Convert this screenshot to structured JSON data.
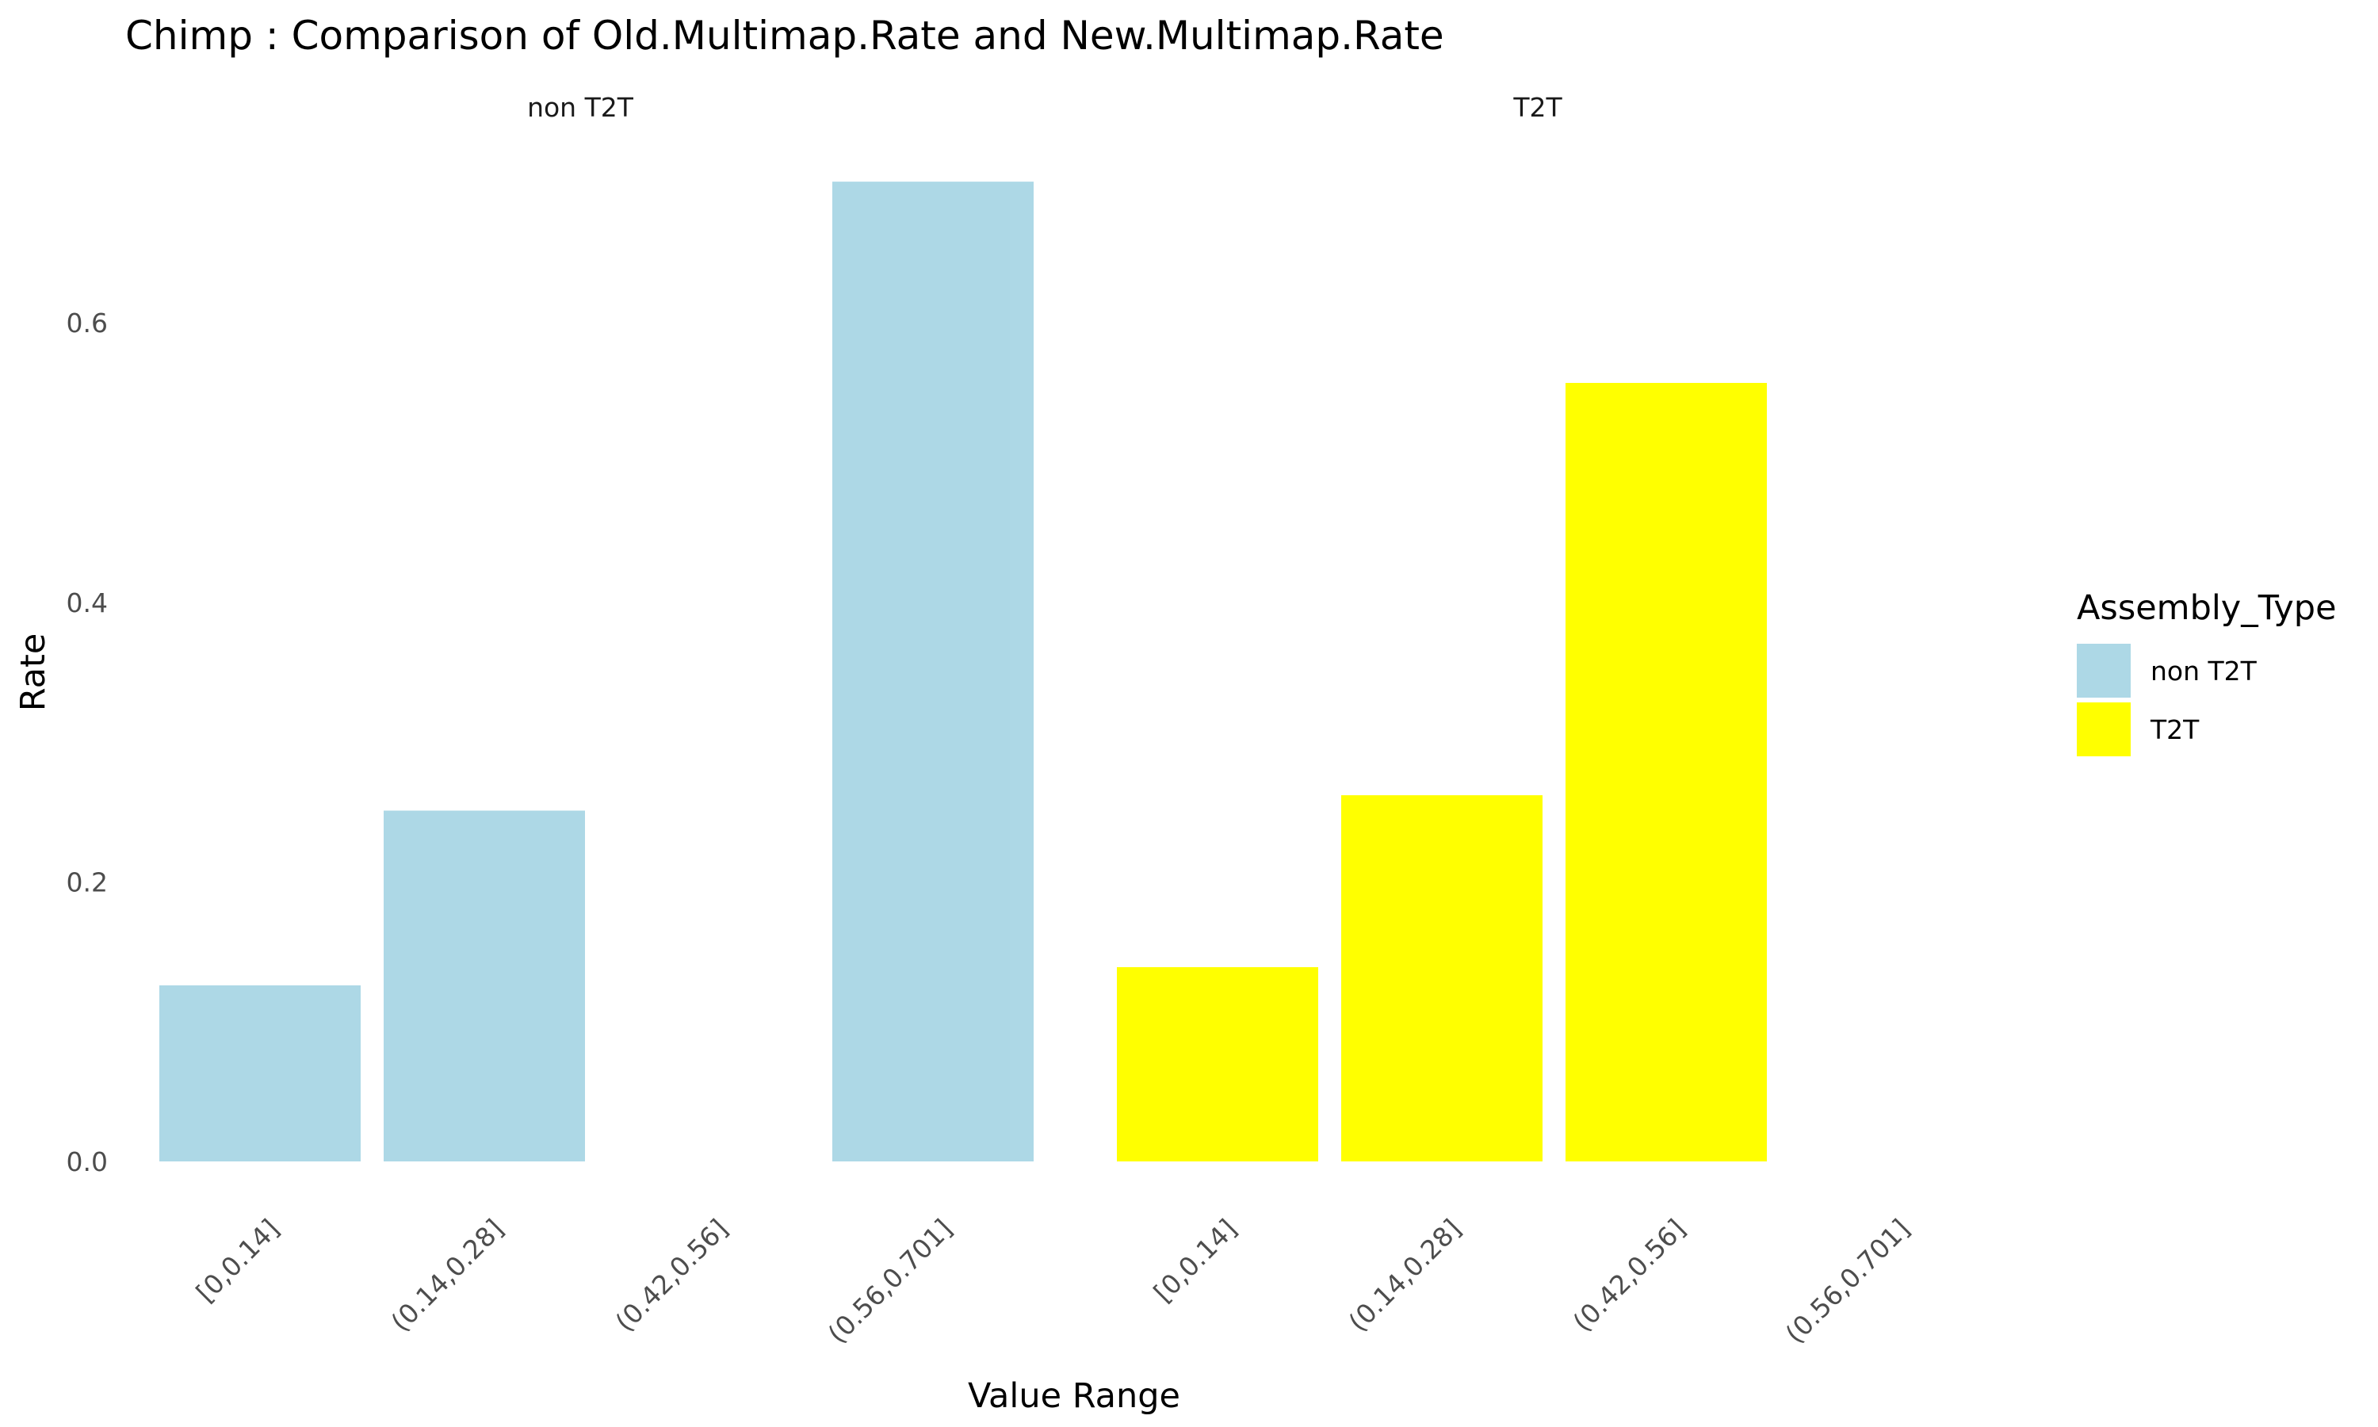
{
  "chart_data": {
    "type": "bar",
    "title": "Chimp : Comparison of Old.Multimap.Rate and New.Multimap.Rate",
    "xlabel": "Value Range",
    "ylabel": "Rate",
    "ylim": [
      0,
      0.72
    ],
    "yticks": [
      "0.0",
      "0.2",
      "0.4",
      "0.6"
    ],
    "ytick_values": [
      0,
      0.2,
      0.4,
      0.6
    ],
    "grid": false,
    "legend": {
      "title": "Assembly_Type",
      "position": "right",
      "entries": [
        {
          "label": "non T2T",
          "color": "#ADD8E6"
        },
        {
          "label": "T2T",
          "color": "#FFFF00"
        }
      ]
    },
    "panels": [
      {
        "name": "non T2T",
        "color": "#ADD8E6",
        "categories": [
          "[0,0.14]",
          "(0.14,0.28]",
          "(0.42,0.56]",
          "(0.56,0.701]"
        ],
        "values": [
          0.126,
          0.251,
          0,
          0.701
        ]
      },
      {
        "name": "T2T",
        "color": "#FFFF00",
        "categories": [
          "[0,0.14]",
          "(0.14,0.28]",
          "(0.42,0.56]",
          "(0.56,0.701]"
        ],
        "values": [
          0.139,
          0.262,
          0.557,
          0
        ]
      }
    ]
  }
}
